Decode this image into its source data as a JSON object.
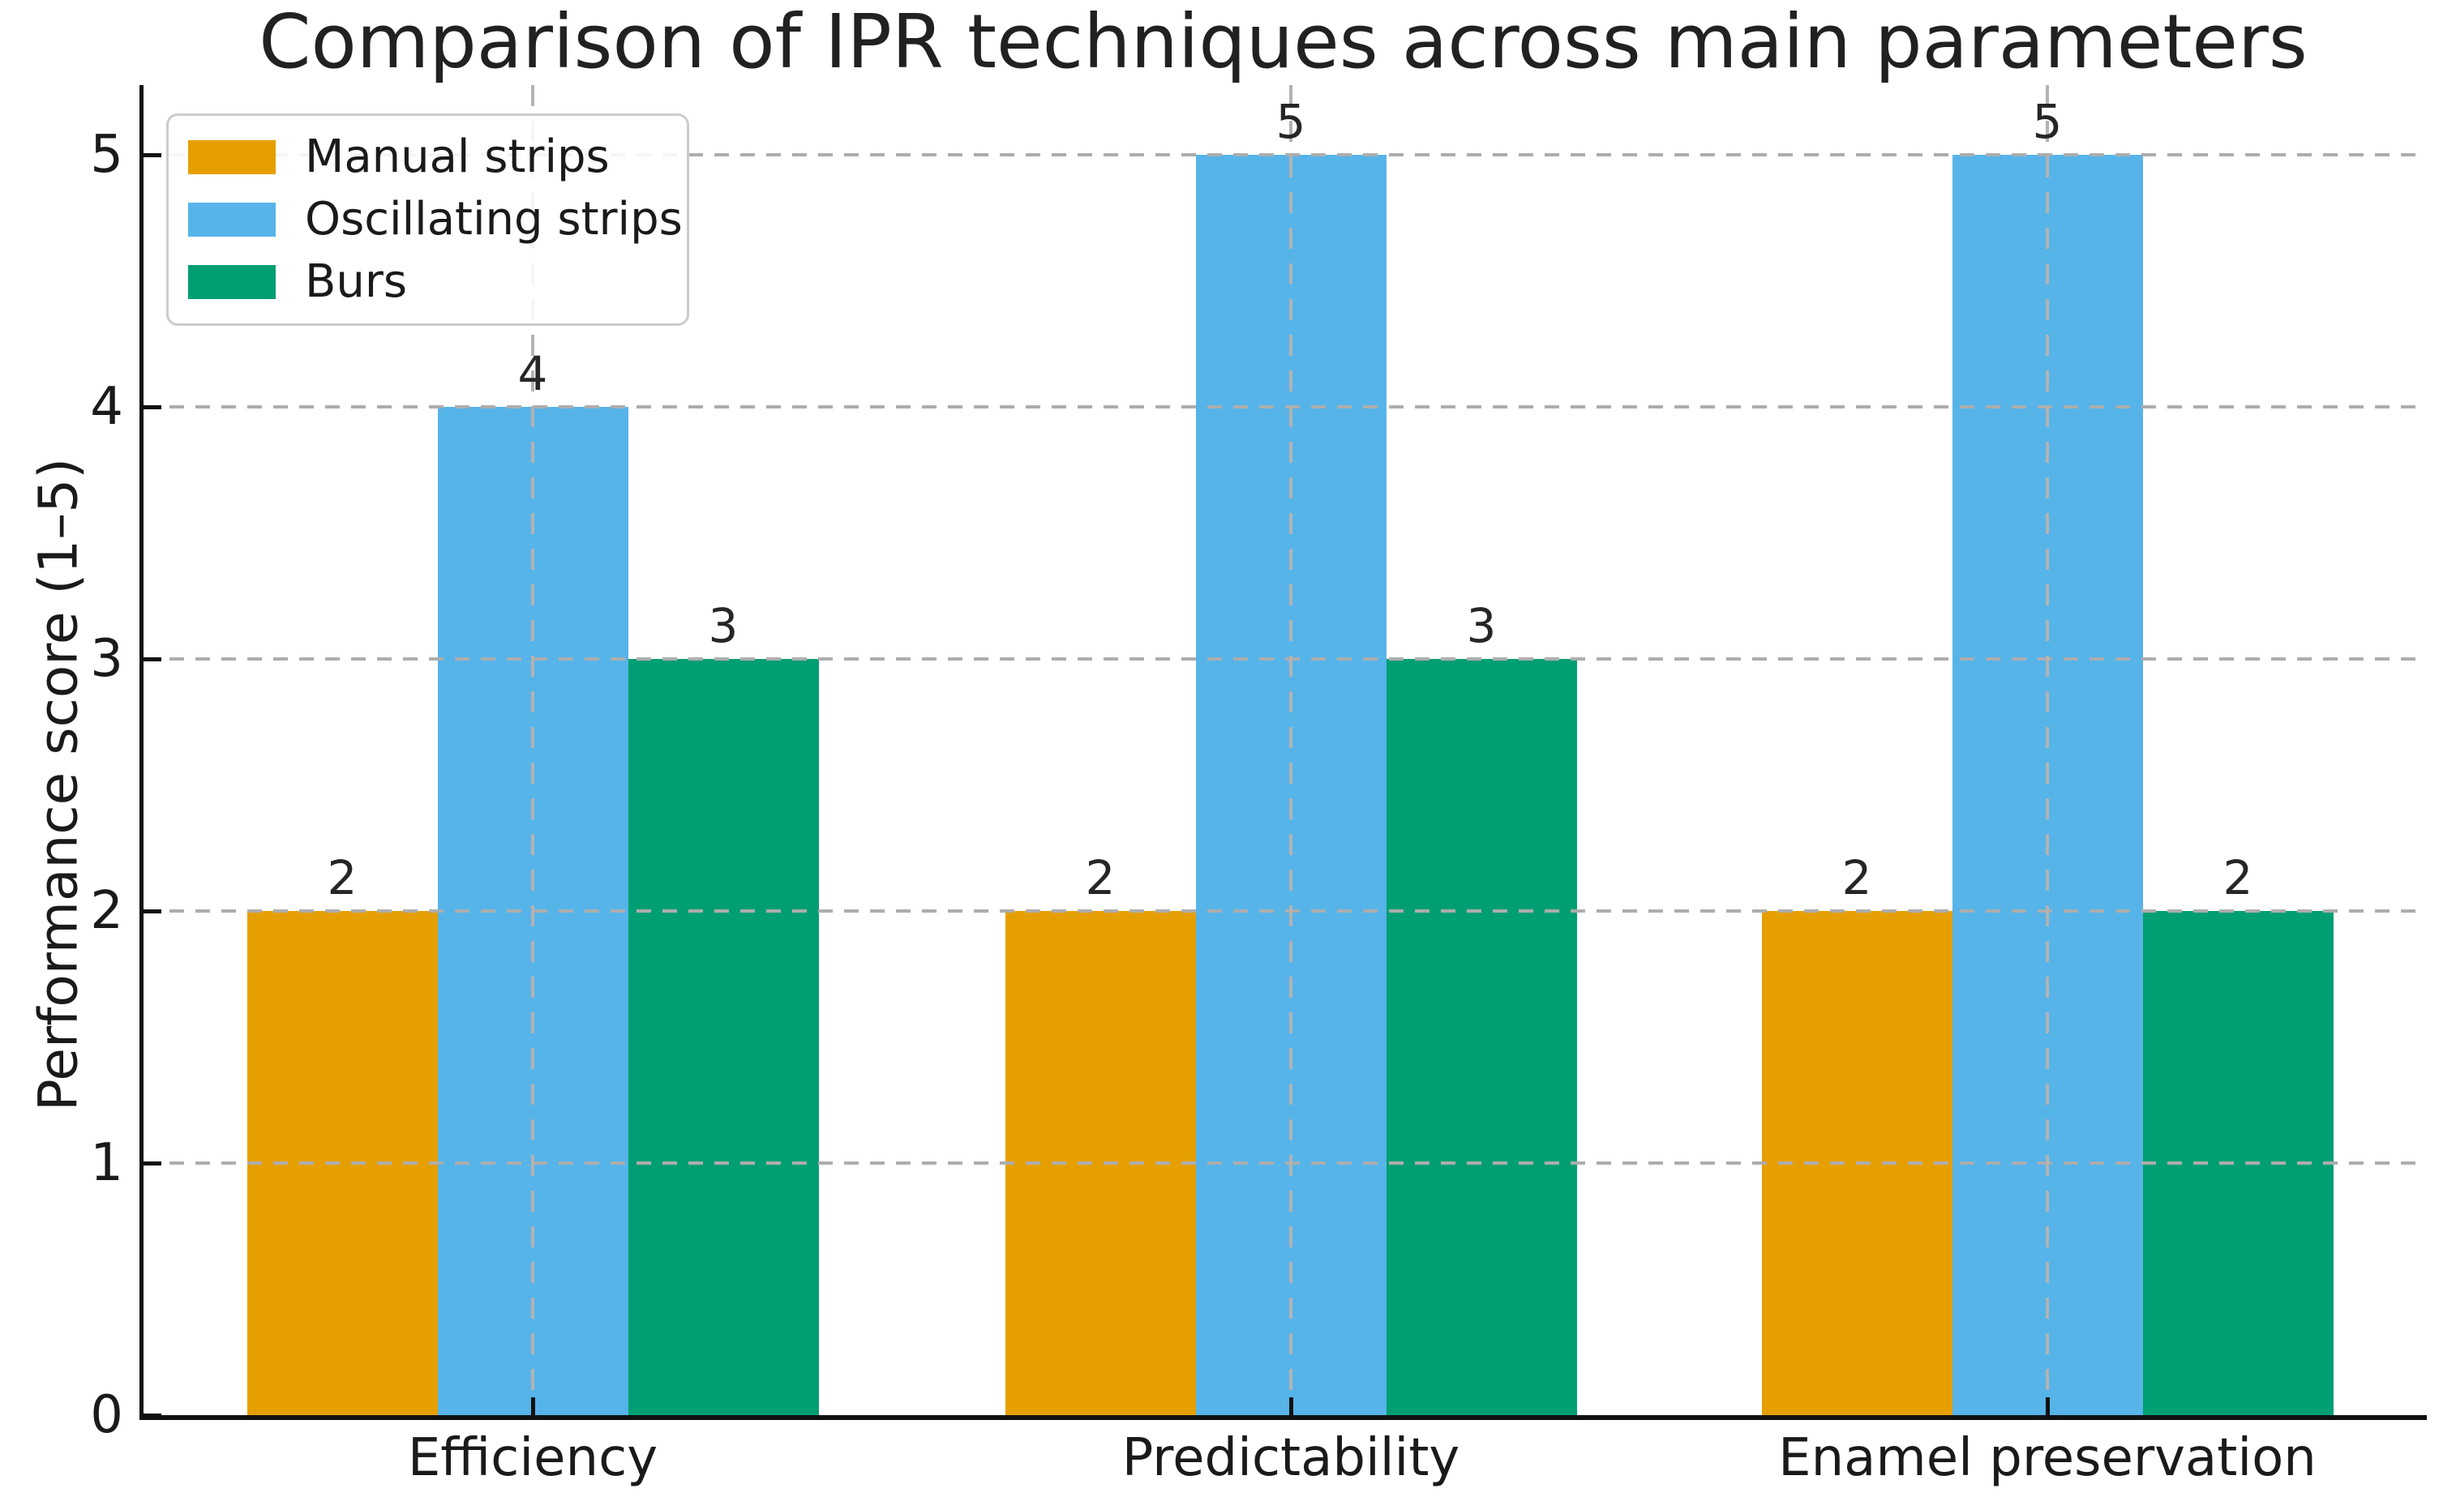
{
  "chart_data": {
    "type": "bar",
    "title": "Comparison of IPR techniques across main parameters",
    "xlabel": "",
    "ylabel": "Performance score (1–5)",
    "categories": [
      "Efficiency",
      "Predictability",
      "Enamel preservation"
    ],
    "series": [
      {
        "name": "Manual strips",
        "color": "#E69F00",
        "values": [
          2,
          2,
          2
        ]
      },
      {
        "name": "Oscillating strips",
        "color": "#56B4E9",
        "values": [
          4,
          5,
          5
        ]
      },
      {
        "name": "Burs",
        "color": "#009E73",
        "values": [
          3,
          3,
          2
        ]
      }
    ],
    "yticks": [
      0,
      1,
      2,
      3,
      4,
      5
    ],
    "ylim": [
      0,
      5.3
    ],
    "bar_labels": true,
    "grid": true,
    "grid_style": "dashed",
    "legend_position": "upper left",
    "style": {
      "background": "#ffffff",
      "grid_color": "#adadad",
      "spine_color": "#111111",
      "text_color": "#1a1a1a"
    }
  }
}
